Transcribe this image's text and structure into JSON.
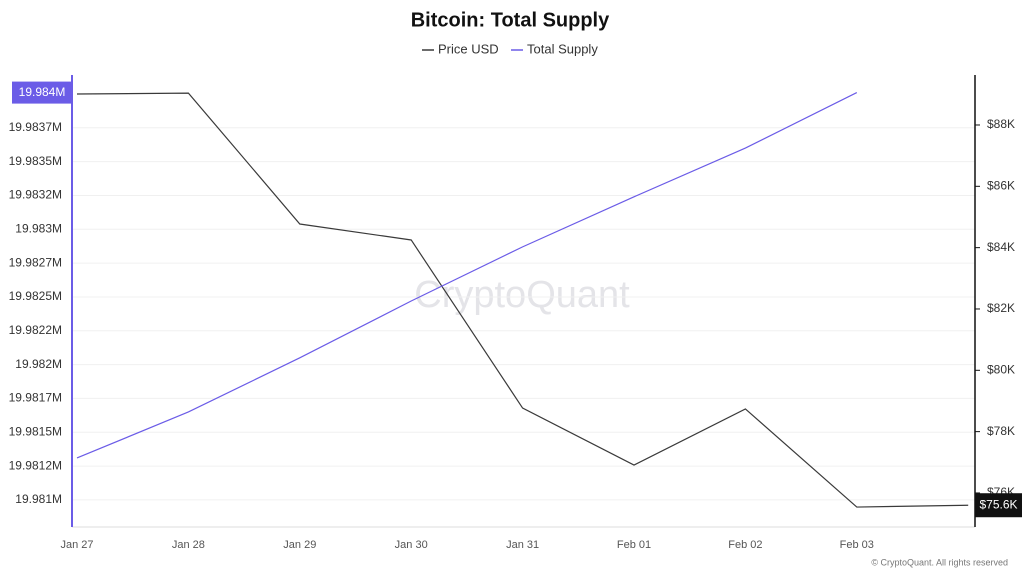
{
  "chart_data": {
    "type": "line",
    "title": "Bitcoin: Total Supply",
    "watermark": "CryptoQuant",
    "credit": "© CryptoQuant. All rights reserved",
    "categories": [
      "Jan 27",
      "Jan 28",
      "Jan 29",
      "Jan 30",
      "Jan 31",
      "Feb 01",
      "Feb 02",
      "Feb 03",
      null
    ],
    "series": [
      {
        "name": "Price USD",
        "color": "#3a3a3a",
        "axis": "y2",
        "values": [
          89.01,
          89.04,
          84.77,
          84.25,
          78.77,
          76.91,
          78.74,
          75.54,
          75.6
        ],
        "value_labels": [
          null,
          null,
          null,
          null,
          null,
          null,
          null,
          null,
          "$75.6K"
        ]
      },
      {
        "name": "Total Supply",
        "color": "#6b5ce7",
        "values": [
          19.98131,
          19.98165,
          19.98205,
          19.98247,
          19.98287,
          19.98324,
          19.9836,
          19.98401,
          null
        ],
        "value_labels": [
          null,
          null,
          null,
          null,
          null,
          null,
          null,
          "19.984M",
          null
        ]
      }
    ],
    "ylim": [
      19.9808,
      19.98414
    ],
    "yticks": [
      {
        "value": 19.981,
        "label": "19.981M"
      },
      {
        "value": 19.98125,
        "label": "19.9812M"
      },
      {
        "value": 19.9815,
        "label": "19.9815M"
      },
      {
        "value": 19.98175,
        "label": "19.9817M"
      },
      {
        "value": 19.982,
        "label": "19.982M"
      },
      {
        "value": 19.98225,
        "label": "19.9822M"
      },
      {
        "value": 19.9825,
        "label": "19.9825M"
      },
      {
        "value": 19.98275,
        "label": "19.9827M"
      },
      {
        "value": 19.983,
        "label": "19.983M"
      },
      {
        "value": 19.98325,
        "label": "19.9832M"
      },
      {
        "value": 19.9835,
        "label": "19.9835M"
      },
      {
        "value": 19.98375,
        "label": "19.9837M"
      }
    ],
    "y2lim": [
      74.89,
      89.63
    ],
    "y2ticks": [
      {
        "value": 76,
        "label": "$76K"
      },
      {
        "value": 78,
        "label": "$78K"
      },
      {
        "value": 80,
        "label": "$80K"
      },
      {
        "value": 82,
        "label": "$82K"
      },
      {
        "value": 84,
        "label": "$84K"
      },
      {
        "value": 86,
        "label": "$86K"
      },
      {
        "value": 88,
        "label": "$88K"
      }
    ],
    "grid": true
  }
}
